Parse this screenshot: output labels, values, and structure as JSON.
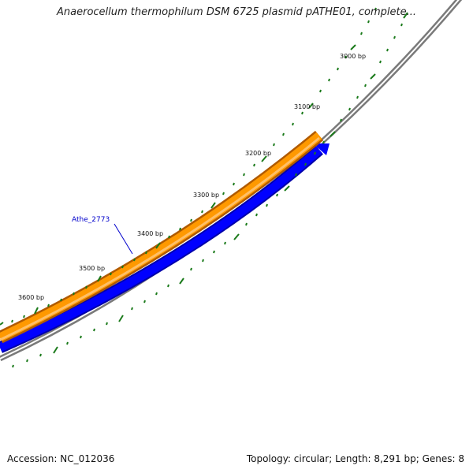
{
  "header": {
    "title": "Anaerocellum thermophilum DSM 6725 plasmid pATHE01, complete..."
  },
  "footer": {
    "accession": "Accession: NC_012036",
    "summary": "Topology: circular; Length: 8,291 bp; Genes: 8"
  },
  "map": {
    "tick_labels": [
      "3000 bp",
      "3100 bp",
      "3200 bp",
      "3300 bp",
      "3400 bp",
      "3500 bp",
      "3600 bp"
    ],
    "gene_label": "Athe_2773",
    "colors": {
      "backbone": "#7a7a7a",
      "forward_gene": "#ff9900",
      "forward_gene_edge": "#b05a00",
      "reverse_gene": "#0000ff",
      "reverse_gene_edge": "#0000aa",
      "ticks": "#1a7a1a",
      "gene_label": "#0000cc"
    }
  }
}
